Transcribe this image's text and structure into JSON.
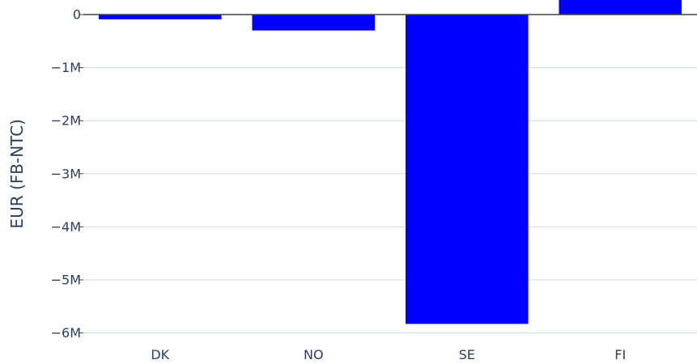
{
  "chart_data": {
    "type": "bar",
    "title": "",
    "xlabel": "",
    "ylabel": "EUR (FB-NTC)",
    "categories": [
      "DK",
      "NO",
      "SE",
      "FI"
    ],
    "values": [
      -90000,
      -300000,
      -5830000,
      280000
    ],
    "y_ticks": [
      0,
      -1000000,
      -2000000,
      -3000000,
      -4000000,
      -5000000,
      -6000000
    ],
    "y_tick_labels": [
      "0",
      "−1M",
      "−2M",
      "−3M",
      "−4M",
      "−5M",
      "−6M"
    ],
    "ylim": [
      -6150000,
      280000
    ],
    "bar_color": "#0000ff",
    "grid": true,
    "legend": "none"
  }
}
